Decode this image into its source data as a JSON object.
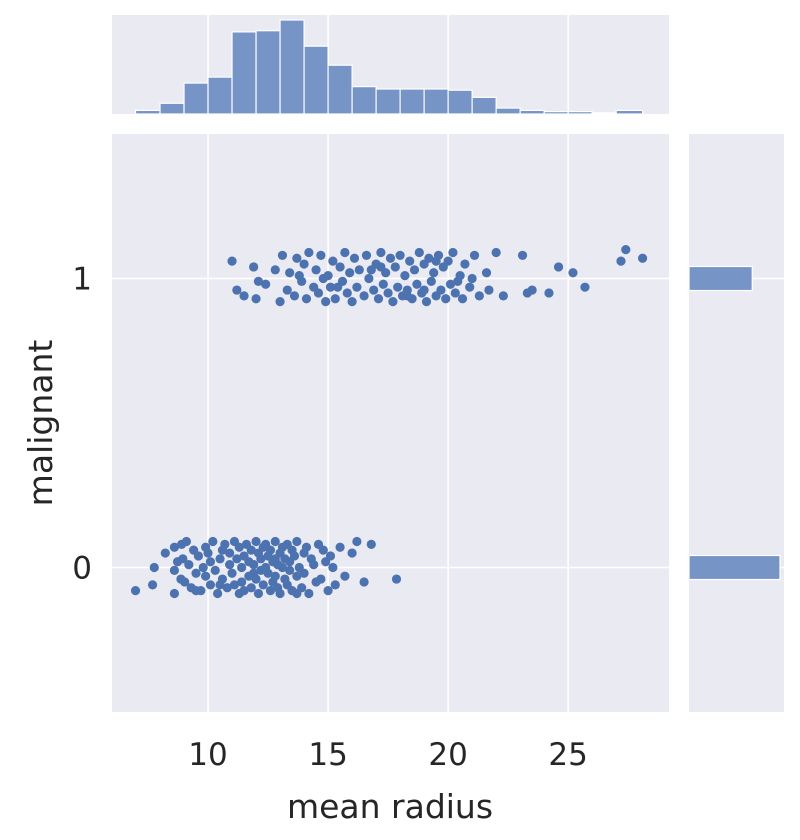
{
  "chart_data": {
    "type": "scatter",
    "title": "",
    "xlabel": "mean radius",
    "ylabel": "malignant",
    "xlim": [
      6.0,
      29.2
    ],
    "ylim": [
      -0.5,
      1.5
    ],
    "x_ticks": [
      "10",
      "15",
      "20",
      "25"
    ],
    "y_ticks": [
      "0",
      "1"
    ],
    "grid": true,
    "marker_color": "#4c72b0",
    "bar_color": "#7694c5",
    "background_color": "#eaeaf2",
    "categories": [
      0,
      1
    ],
    "series": [
      {
        "category": 0,
        "x": [
          6.98,
          7.76,
          7.69,
          8.22,
          8.6,
          8.6,
          8.73,
          8.87,
          8.9,
          8.6,
          8.95,
          9.03,
          9.1,
          9.2,
          9.3,
          9.4,
          9.5,
          9.6,
          9.7,
          9.8,
          9.9,
          9.9,
          10.0,
          10.1,
          10.1,
          10.2,
          10.3,
          10.4,
          10.5,
          10.6,
          10.6,
          10.7,
          10.8,
          10.9,
          10.9,
          11.0,
          11.1,
          11.1,
          11.2,
          11.3,
          11.3,
          11.4,
          11.4,
          11.5,
          11.5,
          11.6,
          11.7,
          11.7,
          11.8,
          11.8,
          11.9,
          12.0,
          12.0,
          12.1,
          12.1,
          12.2,
          12.2,
          12.3,
          12.3,
          12.4,
          12.4,
          12.5,
          12.5,
          12.6,
          12.6,
          12.7,
          12.7,
          12.8,
          12.8,
          12.9,
          12.9,
          13.0,
          13.0,
          13.1,
          13.1,
          13.2,
          13.2,
          13.3,
          13.3,
          13.4,
          13.4,
          13.5,
          13.5,
          13.6,
          13.7,
          13.7,
          13.8,
          13.9,
          14.0,
          14.0,
          14.1,
          14.2,
          14.3,
          14.4,
          14.5,
          14.6,
          14.7,
          14.8,
          14.9,
          15.0,
          15.1,
          15.2,
          15.3,
          15.5,
          15.7,
          16.0,
          16.2,
          16.5,
          16.8,
          17.85,
          12.8,
          11.9,
          10.5,
          9.5,
          13.7
        ],
        "y": [
          -0.08,
          0.0,
          -0.06,
          0.05,
          -0.01,
          0.07,
          0.02,
          -0.04,
          0.08,
          -0.09,
          0.03,
          -0.05,
          0.09,
          0.01,
          -0.07,
          0.06,
          -0.02,
          0.04,
          -0.08,
          0.0,
          0.07,
          -0.03,
          0.05,
          -0.06,
          0.02,
          0.09,
          -0.01,
          -0.09,
          0.03,
          0.06,
          -0.04,
          0.08,
          -0.07,
          0.01,
          0.05,
          -0.02,
          0.09,
          -0.06,
          0.03,
          -0.09,
          0.07,
          0.0,
          -0.05,
          0.04,
          -0.08,
          0.08,
          0.02,
          -0.03,
          0.06,
          -0.07,
          0.01,
          0.09,
          -0.04,
          0.05,
          -0.09,
          0.03,
          -0.01,
          0.07,
          -0.06,
          0.0,
          0.08,
          -0.02,
          0.04,
          -0.08,
          0.06,
          0.02,
          -0.05,
          0.09,
          -0.03,
          0.01,
          -0.07,
          0.05,
          -0.09,
          0.07,
          0.0,
          -0.04,
          0.03,
          0.08,
          -0.06,
          0.02,
          -0.01,
          0.06,
          -0.08,
          0.04,
          0.09,
          -0.03,
          0.0,
          -0.07,
          0.05,
          -0.02,
          0.07,
          -0.09,
          0.03,
          0.01,
          -0.05,
          0.08,
          -0.04,
          0.06,
          0.02,
          -0.08,
          0.04,
          0.0,
          -0.06,
          0.07,
          -0.03,
          0.05,
          0.09,
          -0.05,
          0.08,
          -0.04,
          0.03,
          -0.02,
          -0.06,
          -0.08,
          -0.09
        ],
        "hist_fraction": 0.59
      },
      {
        "category": 1,
        "x": [
          11.0,
          11.2,
          11.5,
          11.9,
          12.0,
          12.4,
          12.8,
          13.0,
          13.1,
          13.3,
          13.4,
          13.6,
          13.7,
          13.9,
          14.0,
          14.1,
          14.2,
          14.4,
          14.5,
          14.6,
          14.7,
          14.9,
          15.0,
          15.1,
          15.2,
          15.3,
          15.5,
          15.6,
          15.7,
          15.8,
          15.9,
          16.0,
          16.1,
          16.2,
          16.3,
          16.5,
          16.6,
          16.7,
          16.9,
          17.0,
          17.1,
          17.2,
          17.3,
          17.4,
          17.5,
          17.6,
          17.7,
          17.8,
          17.9,
          18.0,
          18.1,
          18.2,
          18.3,
          18.4,
          18.5,
          18.6,
          18.7,
          18.8,
          18.9,
          19.0,
          19.1,
          19.2,
          19.3,
          19.4,
          19.5,
          19.6,
          19.7,
          19.8,
          19.9,
          20.0,
          20.1,
          20.2,
          20.3,
          20.5,
          20.6,
          20.7,
          20.9,
          21.1,
          21.3,
          21.6,
          21.7,
          22.0,
          22.3,
          23.1,
          23.3,
          23.5,
          24.2,
          24.6,
          25.2,
          25.7,
          27.2,
          27.4,
          28.1,
          12.1,
          13.8,
          15.4,
          16.8,
          18.3,
          19.5,
          20.4,
          17.2,
          14.8,
          19.0,
          21.0
        ],
        "y": [
          1.06,
          0.96,
          0.94,
          1.04,
          0.93,
          0.98,
          1.03,
          0.92,
          1.08,
          0.96,
          1.02,
          0.94,
          1.07,
          0.99,
          1.05,
          0.93,
          1.09,
          0.97,
          1.03,
          0.95,
          1.08,
          0.92,
          1.01,
          0.97,
          1.06,
          0.93,
          1.04,
          0.99,
          1.09,
          0.95,
          1.02,
          0.92,
          1.07,
          0.97,
          1.03,
          0.94,
          1.08,
          1.0,
          0.96,
          1.05,
          0.93,
          1.09,
          0.98,
          1.02,
          0.95,
          1.07,
          0.92,
          1.04,
          0.97,
          1.08,
          0.94,
          1.01,
          0.96,
          1.06,
          0.93,
          1.03,
          0.98,
          1.09,
          0.95,
          1.05,
          0.92,
          1.07,
          0.99,
          1.02,
          0.94,
          1.08,
          0.96,
          1.04,
          0.93,
          1.06,
          0.98,
          1.09,
          0.95,
          1.01,
          0.93,
          1.05,
          0.97,
          1.08,
          0.94,
          1.02,
          0.96,
          1.09,
          0.94,
          1.08,
          0.95,
          0.96,
          0.95,
          1.04,
          1.02,
          0.97,
          1.06,
          1.1,
          1.07,
          0.99,
          1.01,
          0.97,
          1.03,
          0.94,
          1.06,
          0.99,
          1.04,
          1.0,
          0.96,
          1.0
        ],
        "hist_fraction": 0.41
      }
    ],
    "x_histogram": {
      "bin_edges": [
        6.98,
        8.0,
        9.0,
        10.0,
        11.0,
        12.0,
        13.0,
        14.0,
        15.0,
        16.0,
        17.0,
        18.0,
        19.0,
        20.0,
        21.0,
        22.0,
        23.0,
        24.0,
        25.0,
        26.0,
        27.0,
        28.1
      ],
      "counts": [
        1.5,
        4.5,
        13,
        15.5,
        34.5,
        35,
        39.5,
        28.5,
        20.5,
        11.5,
        10.5,
        10.5,
        10.5,
        10,
        7,
        2.5,
        1.5,
        1,
        1,
        0.5,
        1.5
      ]
    }
  }
}
